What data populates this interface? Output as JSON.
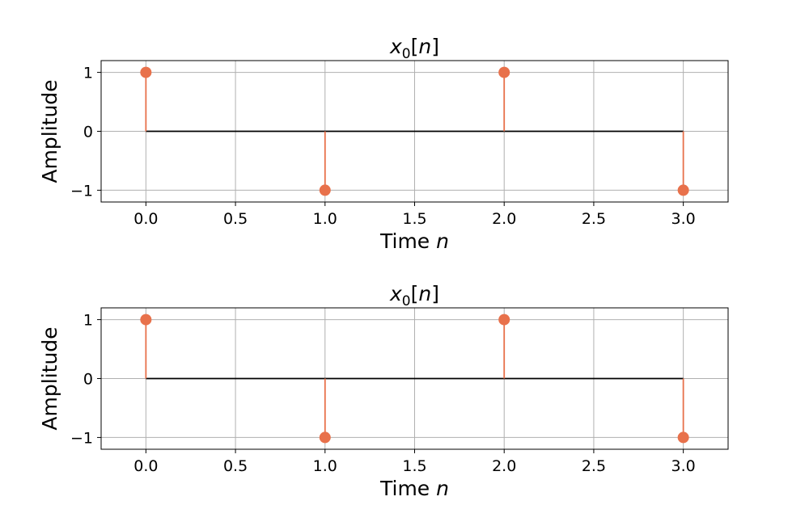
{
  "chart_data": [
    {
      "type": "stem",
      "title": {
        "base": "x",
        "sub": "0",
        "open": "[",
        "var": "n",
        "close": "]"
      },
      "xlabel": {
        "text": "Time ",
        "var": "n"
      },
      "ylabel": "Amplitude",
      "x": [
        0,
        1,
        2,
        3
      ],
      "values": [
        1,
        -1,
        1,
        -1
      ],
      "xlim": [
        -0.25,
        3.25
      ],
      "ylim": [
        -1.2,
        1.2
      ],
      "xticks": [
        0.0,
        0.5,
        1.0,
        1.5,
        2.0,
        2.5,
        3.0
      ],
      "xtick_labels": [
        "0.0",
        "0.5",
        "1.0",
        "1.5",
        "2.0",
        "2.5",
        "3.0"
      ],
      "yticks": [
        -1,
        0,
        1
      ],
      "ytick_labels": [
        "−1",
        "0",
        "1"
      ],
      "grid": true,
      "stem_color": "#e8714b",
      "baseline_color": "#000000"
    },
    {
      "type": "stem",
      "title": {
        "base": "x",
        "sub": "0",
        "open": "[",
        "var": "n",
        "close": "]"
      },
      "xlabel": {
        "text": "Time ",
        "var": "n"
      },
      "ylabel": "Amplitude",
      "x": [
        0,
        1,
        2,
        3
      ],
      "values": [
        1,
        -1,
        1,
        -1
      ],
      "xlim": [
        -0.25,
        3.25
      ],
      "ylim": [
        -1.2,
        1.2
      ],
      "xticks": [
        0.0,
        0.5,
        1.0,
        1.5,
        2.0,
        2.5,
        3.0
      ],
      "xtick_labels": [
        "0.0",
        "0.5",
        "1.0",
        "1.5",
        "2.0",
        "2.5",
        "3.0"
      ],
      "yticks": [
        -1,
        0,
        1
      ],
      "ytick_labels": [
        "−1",
        "0",
        "1"
      ],
      "grid": true,
      "stem_color": "#e8714b",
      "baseline_color": "#000000"
    }
  ]
}
